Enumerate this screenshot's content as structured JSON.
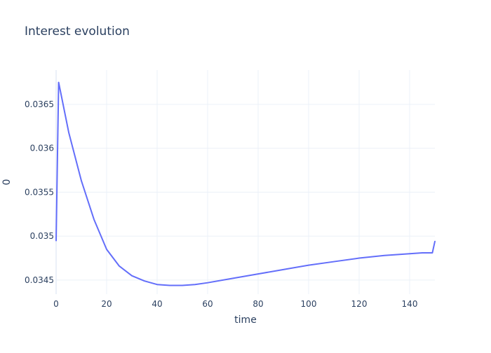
{
  "chart_data": {
    "type": "line",
    "title": "Interest evolution",
    "xlabel": "time",
    "ylabel": "0",
    "xlim": [
      0,
      150
    ],
    "ylim": [
      0.03434,
      0.03689
    ],
    "x_ticks": [
      {
        "value": 0,
        "label": "0"
      },
      {
        "value": 20,
        "label": "20"
      },
      {
        "value": 40,
        "label": "40"
      },
      {
        "value": 60,
        "label": "60"
      },
      {
        "value": 80,
        "label": "80"
      },
      {
        "value": 100,
        "label": "100"
      },
      {
        "value": 120,
        "label": "120"
      },
      {
        "value": 140,
        "label": "140"
      }
    ],
    "y_ticks": [
      {
        "value": 0.0345,
        "label": "0.0345"
      },
      {
        "value": 0.035,
        "label": "0.035"
      },
      {
        "value": 0.0355,
        "label": "0.0355"
      },
      {
        "value": 0.036,
        "label": "0.036"
      },
      {
        "value": 0.0365,
        "label": "0.0365"
      }
    ],
    "grid": true,
    "legend": "none",
    "colors": {
      "line": "#636efa",
      "grid": "#ebf0f8",
      "text": "#2a3f5f",
      "axis_text": "#2a3f5f"
    },
    "series": [
      {
        "x": [
          0,
          1,
          5,
          10,
          15,
          20,
          25,
          30,
          35,
          40,
          45,
          50,
          55,
          60,
          70,
          80,
          90,
          100,
          110,
          120,
          130,
          140,
          145,
          149,
          150
        ],
        "values": [
          0.03495,
          0.03675,
          0.03618,
          0.03563,
          0.03519,
          0.03485,
          0.03466,
          0.03455,
          0.03449,
          0.03445,
          0.03444,
          0.03444,
          0.03445,
          0.03447,
          0.03452,
          0.03457,
          0.03462,
          0.03467,
          0.03471,
          0.03475,
          0.03478,
          0.0348,
          0.03481,
          0.03481,
          0.03494
        ]
      }
    ]
  }
}
